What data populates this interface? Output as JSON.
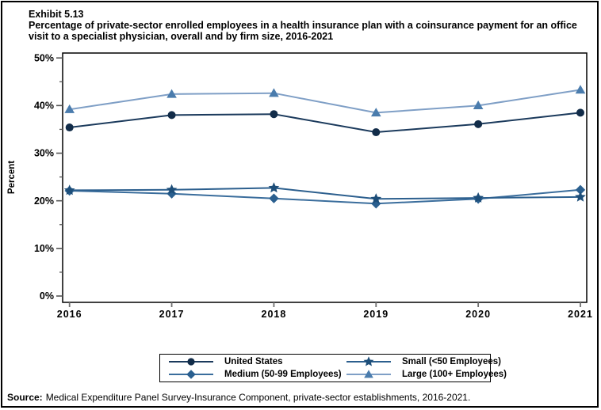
{
  "header": {
    "exhibit": "Exhibit 5.13",
    "title": "Percentage of private-sector enrolled employees in a health insurance plan with a coinsurance payment for an office visit to a specialist physician, overall and by firm size, 2016-2021"
  },
  "source": {
    "label": "Source:",
    "text": "Medical Expenditure Panel Survey-Insurance Component, private-sector establishments, 2016-2021."
  },
  "chart_data": {
    "type": "line",
    "x": [
      2016,
      2017,
      2018,
      2019,
      2020,
      2021
    ],
    "xlabel": "",
    "ylabel": "Percent",
    "ylim": [
      0,
      50
    ],
    "yticks": [
      0,
      10,
      20,
      30,
      40,
      50
    ],
    "minor_yticks": [
      5,
      15,
      25,
      35,
      45
    ],
    "ytick_suffix": "%",
    "grid": false,
    "legend_position": "bottom",
    "draw_order": [
      0,
      2,
      1,
      3
    ],
    "series": [
      {
        "name": "United States",
        "marker": "circle",
        "line_color": "#1b3a5c",
        "marker_color": "#122c49",
        "values": [
          35.4,
          38.0,
          38.2,
          34.4,
          36.1,
          38.5
        ]
      },
      {
        "name": "Small (<50 Employees)",
        "marker": "star",
        "line_color": "#2c5f8e",
        "marker_color": "#1d4e79",
        "values": [
          22.2,
          22.3,
          22.7,
          20.4,
          20.6,
          20.8
        ]
      },
      {
        "name": "Medium (50-99 Employees)",
        "marker": "diamond",
        "line_color": "#3a6d9c",
        "marker_color": "#2a5f8f",
        "values": [
          22.1,
          21.5,
          20.5,
          19.4,
          20.4,
          22.3
        ]
      },
      {
        "name": "Large (100+ Employees)",
        "marker": "triangle",
        "line_color": "#7f9fc6",
        "marker_color": "#4a7cad",
        "values": [
          39.2,
          42.4,
          42.6,
          38.5,
          40.0,
          43.3
        ]
      }
    ]
  }
}
